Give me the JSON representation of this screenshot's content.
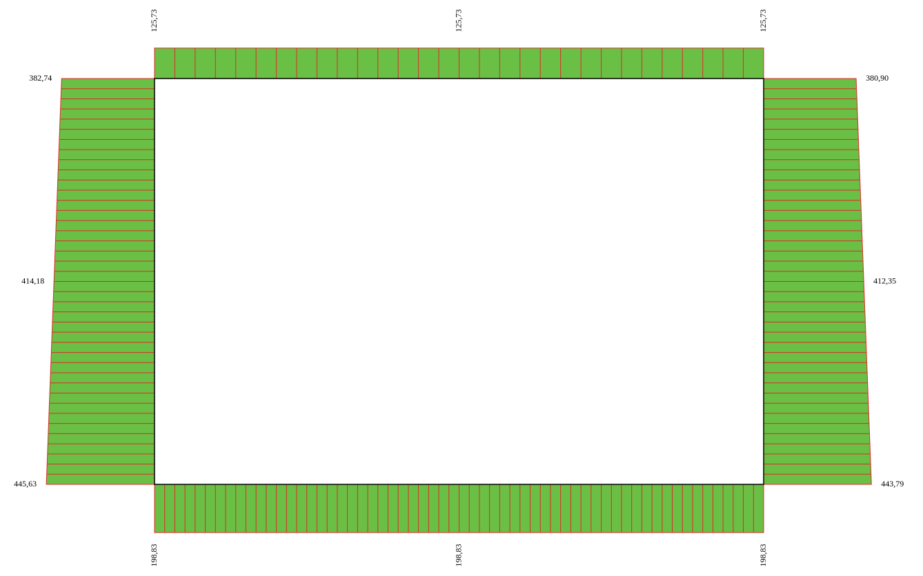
{
  "diagram": {
    "top": [
      {
        "value": 125.73,
        "label": "125,73"
      },
      {
        "value": 125.73,
        "label": "125,73"
      },
      {
        "value": 125.73,
        "label": "125,73"
      }
    ],
    "bottom": [
      {
        "value": 198.83,
        "label": "198,83"
      },
      {
        "value": 198.83,
        "label": "198,83"
      },
      {
        "value": 198.83,
        "label": "198,83"
      }
    ],
    "left": [
      {
        "value": 382.74,
        "label": "382,74"
      },
      {
        "value": 414.18,
        "label": "414,18"
      },
      {
        "value": 445.63,
        "label": "445,63"
      }
    ],
    "right": [
      {
        "value": 380.9,
        "label": "380,90"
      },
      {
        "value": 412.35,
        "label": "412,35"
      },
      {
        "value": 443.79,
        "label": "443,79"
      }
    ]
  }
}
